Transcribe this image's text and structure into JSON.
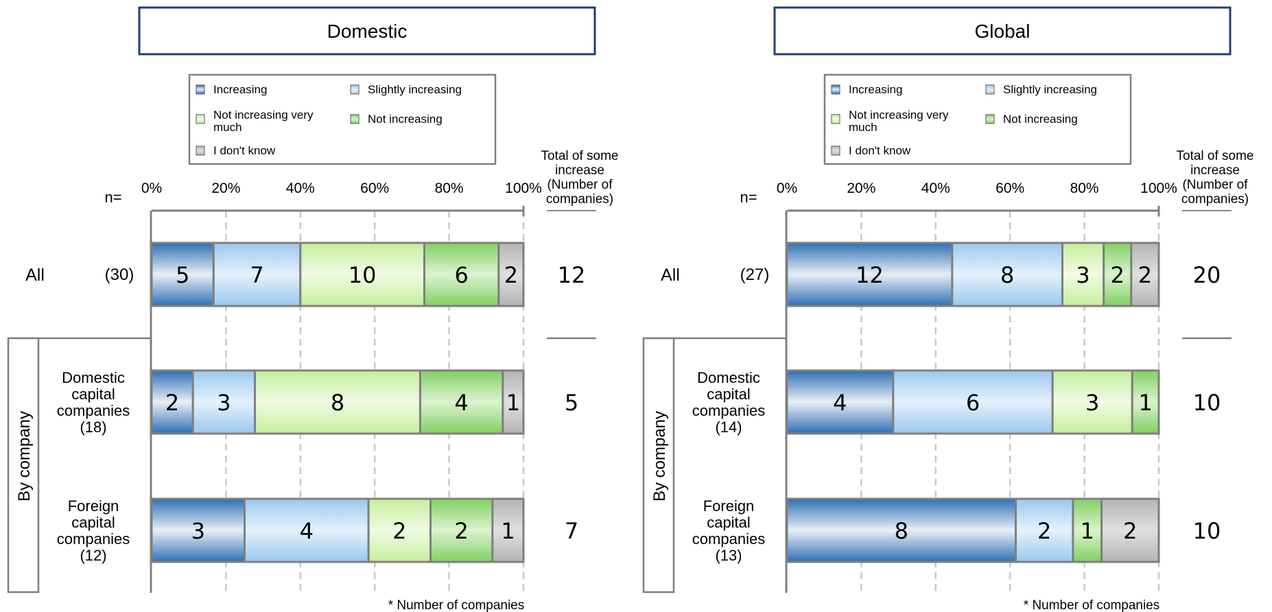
{
  "legend_order": [
    "Increasing",
    "Slightly increasing",
    "Not increasing very much",
    "Not increasing",
    "I don't know"
  ],
  "n_label": "n=",
  "total_header": [
    "Total of some",
    "increase",
    "(Number of",
    "companies)"
  ],
  "footnote": "* Number of companies",
  "by_company_label": "By company",
  "colors": {
    "Increasing": [
      "#2e6fb5",
      "#e8eef6"
    ],
    "Slightly increasing": [
      "#9cc8ee",
      "#e4f1fc"
    ],
    "Not increasing very much": [
      "#c6ef9c",
      "#f0fae4"
    ],
    "Not increasing": [
      "#82d064",
      "#dcf2cf"
    ],
    "I don't know": [
      "#b4b4b4",
      "#e0e0e0"
    ],
    "frame": "#1f3d73"
  },
  "chart_data": [
    {
      "type": "bar",
      "orientation": "horizontal",
      "stacked": "percent",
      "title": "Domestic",
      "xticks": [
        "0%",
        "20%",
        "40%",
        "60%",
        "80%",
        "100%"
      ],
      "xlim": [
        0,
        100
      ],
      "legend": [
        "Increasing",
        "Slightly increasing",
        "Not increasing very much",
        "Not increasing",
        "I don't know"
      ],
      "rows": [
        {
          "label": [
            "All"
          ],
          "n": "(30)",
          "values": [
            5,
            7,
            10,
            6,
            2
          ],
          "total": "12"
        },
        {
          "label": [
            "Domestic",
            "capital",
            "companies",
            "(18)"
          ],
          "n": "",
          "values": [
            2,
            3,
            8,
            4,
            1
          ],
          "total": "5"
        },
        {
          "label": [
            "Foreign",
            "capital",
            "companies",
            "(12)"
          ],
          "n": "",
          "values": [
            3,
            4,
            2,
            2,
            1
          ],
          "total": "7"
        }
      ]
    },
    {
      "type": "bar",
      "orientation": "horizontal",
      "stacked": "percent",
      "title": "Global",
      "xticks": [
        "0%",
        "20%",
        "40%",
        "60%",
        "80%",
        "100%"
      ],
      "xlim": [
        0,
        100
      ],
      "legend": [
        "Increasing",
        "Slightly increasing",
        "Not increasing very much",
        "Not increasing",
        "I don't know"
      ],
      "rows": [
        {
          "label": [
            "All"
          ],
          "n": "(27)",
          "values": [
            12,
            8,
            3,
            2,
            2
          ],
          "total": "20"
        },
        {
          "label": [
            "Domestic",
            "capital",
            "companies",
            "(14)"
          ],
          "n": "",
          "values": [
            4,
            6,
            3,
            1,
            0
          ],
          "total": "10"
        },
        {
          "label": [
            "Foreign",
            "capital",
            "companies",
            "(13)"
          ],
          "n": "",
          "values": [
            8,
            2,
            0,
            1,
            2
          ],
          "total": "10"
        }
      ]
    }
  ]
}
